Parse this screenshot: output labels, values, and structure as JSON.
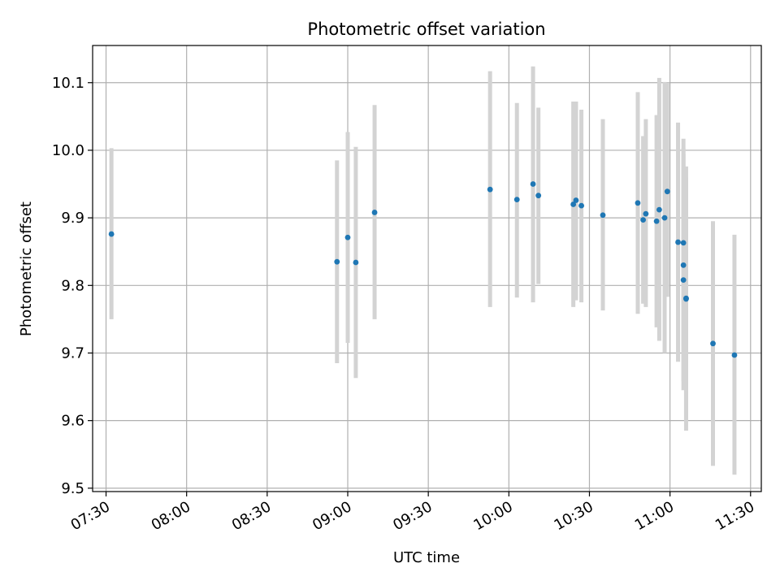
{
  "chart_data": {
    "type": "scatter",
    "title": "Photometric offset variation",
    "xlabel": "UTC time",
    "ylabel": "Photometric offset",
    "xlim": [
      "07:25",
      "11:34"
    ],
    "ylim": [
      9.495,
      10.155
    ],
    "grid": true,
    "x_ticks": [
      "07:30",
      "08:00",
      "08:30",
      "09:00",
      "09:30",
      "10:00",
      "10:30",
      "11:00",
      "11:30"
    ],
    "y_ticks": [
      9.5,
      9.6,
      9.7,
      9.8,
      9.9,
      10.0,
      10.1
    ],
    "y_tick_labels": [
      "9.5",
      "9.6",
      "9.7",
      "9.8",
      "9.9",
      "10.0",
      "10.1"
    ],
    "series": [
      {
        "color": "#1f77b4",
        "errorbar_color": "#d3d3d3",
        "points": [
          {
            "x": "07:32",
            "y": 9.876,
            "ylo": 9.75,
            "yhi": 10.003
          },
          {
            "x": "08:56",
            "y": 9.835,
            "ylo": 9.685,
            "yhi": 9.985
          },
          {
            "x": "09:00",
            "y": 9.871,
            "ylo": 9.715,
            "yhi": 10.027
          },
          {
            "x": "09:03",
            "y": 9.834,
            "ylo": 9.663,
            "yhi": 10.005
          },
          {
            "x": "09:10",
            "y": 9.908,
            "ylo": 9.75,
            "yhi": 10.067
          },
          {
            "x": "09:53",
            "y": 9.942,
            "ylo": 9.768,
            "yhi": 10.117
          },
          {
            "x": "10:03",
            "y": 9.927,
            "ylo": 9.782,
            "yhi": 10.07
          },
          {
            "x": "10:09",
            "y": 9.95,
            "ylo": 9.775,
            "yhi": 10.124
          },
          {
            "x": "10:11",
            "y": 9.933,
            "ylo": 9.802,
            "yhi": 10.063
          },
          {
            "x": "10:24",
            "y": 9.92,
            "ylo": 9.768,
            "yhi": 10.072
          },
          {
            "x": "10:25",
            "y": 9.926,
            "ylo": 9.778,
            "yhi": 10.072
          },
          {
            "x": "10:27",
            "y": 9.918,
            "ylo": 9.775,
            "yhi": 10.06
          },
          {
            "x": "10:35",
            "y": 9.904,
            "ylo": 9.763,
            "yhi": 10.046
          },
          {
            "x": "10:48",
            "y": 9.922,
            "ylo": 9.758,
            "yhi": 10.086
          },
          {
            "x": "10:50",
            "y": 9.897,
            "ylo": 9.773,
            "yhi": 10.021
          },
          {
            "x": "10:51",
            "y": 9.906,
            "ylo": 9.768,
            "yhi": 10.046
          },
          {
            "x": "10:55",
            "y": 9.895,
            "ylo": 9.738,
            "yhi": 10.052
          },
          {
            "x": "10:56",
            "y": 9.912,
            "ylo": 9.718,
            "yhi": 10.107
          },
          {
            "x": "10:58",
            "y": 9.9,
            "ylo": 9.7,
            "yhi": 10.101
          },
          {
            "x": "10:59",
            "y": 9.939,
            "ylo": 9.783,
            "yhi": 10.1
          },
          {
            "x": "11:03",
            "y": 9.864,
            "ylo": 9.687,
            "yhi": 10.041
          },
          {
            "x": "11:05",
            "y": 9.863,
            "ylo": 9.71,
            "yhi": 10.017
          },
          {
            "x": "11:05",
            "y": 9.83,
            "ylo": 9.658,
            "yhi": 10.003
          },
          {
            "x": "11:05",
            "y": 9.808,
            "ylo": 9.645,
            "yhi": 9.994
          },
          {
            "x": "11:06",
            "y": 9.781,
            "ylo": 9.585,
            "yhi": 9.976
          },
          {
            "x": "11:06",
            "y": 9.78,
            "ylo": 9.6,
            "yhi": 9.96
          },
          {
            "x": "11:16",
            "y": 9.714,
            "ylo": 9.533,
            "yhi": 9.895
          },
          {
            "x": "11:24",
            "y": 9.697,
            "ylo": 9.52,
            "yhi": 9.875
          }
        ]
      }
    ]
  }
}
